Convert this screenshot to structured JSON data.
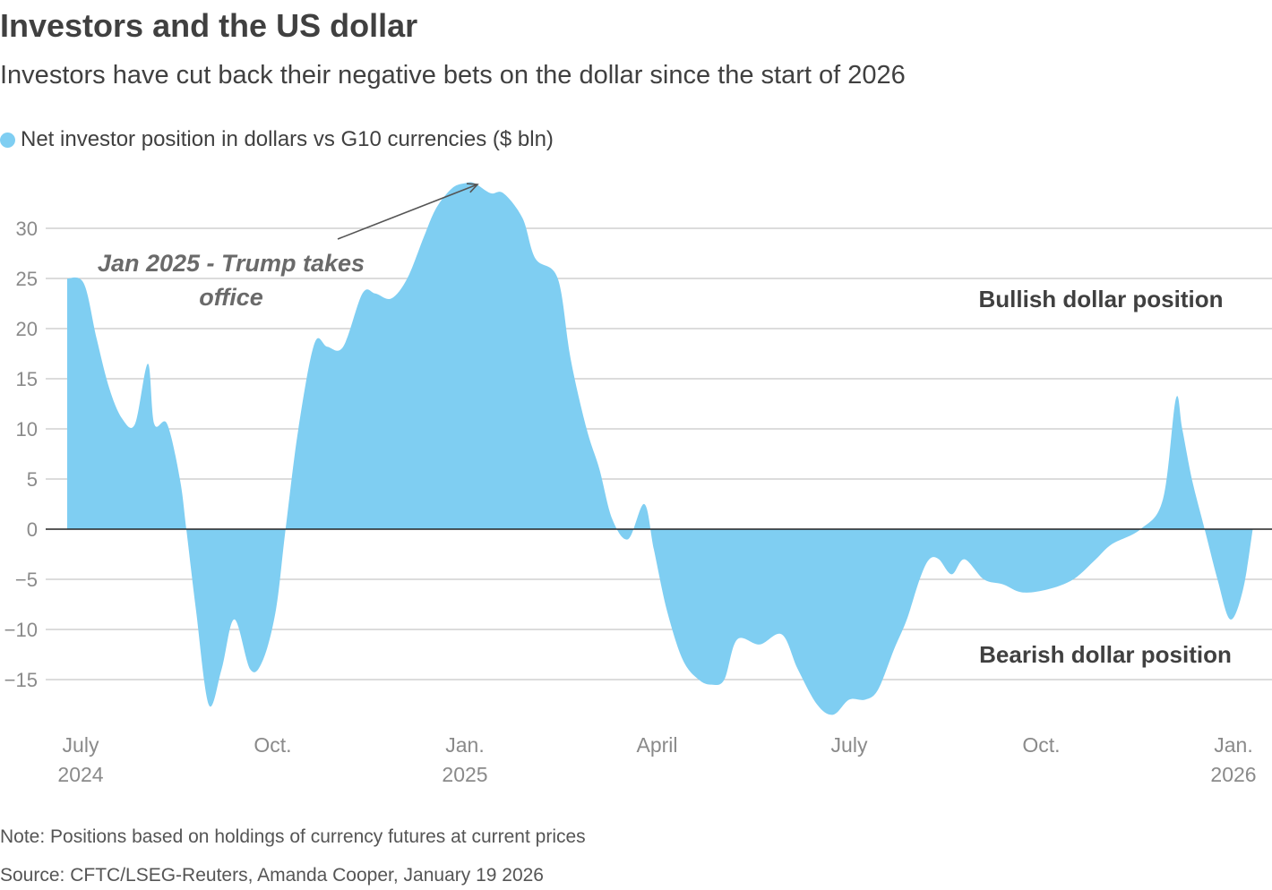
{
  "title": "Investors and the US dollar",
  "subtitle": "Investors have cut back their negative bets on the dollar since the start of 2026",
  "legend": {
    "label": "Net investor position in dollars vs G10 currencies ($ bln)",
    "color": "#7fcef2"
  },
  "note": "Note: Positions based on holdings of currency futures at current prices",
  "source": "Source: CFTC/LSEG-Reuters, Amanda Cooper, January 19 2026",
  "chart_data": {
    "type": "area",
    "title": "Investors and the US dollar",
    "ylabel": "Net investor position in dollars vs G10 currencies ($ bln)",
    "xlabel": "",
    "ylim": [
      -19,
      35
    ],
    "yticks": [
      30,
      25,
      20,
      15,
      10,
      5,
      0,
      -5,
      -10,
      -15
    ],
    "ytick_labels": [
      "30",
      "25",
      "20",
      "15",
      "10",
      "5",
      "0",
      "−5",
      "−10",
      "−15"
    ],
    "x_unit": "months since 2024-07-01",
    "xlim": [
      0,
      18.6
    ],
    "xticks": [
      {
        "x": 0,
        "line1": "July",
        "line2": "2024"
      },
      {
        "x": 3,
        "line1": "Oct.",
        "line2": ""
      },
      {
        "x": 6,
        "line1": "Jan.",
        "line2": "2025"
      },
      {
        "x": 9,
        "line1": "April",
        "line2": ""
      },
      {
        "x": 12,
        "line1": "July",
        "line2": ""
      },
      {
        "x": 15,
        "line1": "Oct.",
        "line2": ""
      },
      {
        "x": 18,
        "line1": "Jan.",
        "line2": "2026"
      }
    ],
    "series": [
      {
        "name": "Net investor position in dollars vs G10 currencies ($ bln)",
        "color": "#7fcef2",
        "x": [
          -0.2,
          0.05,
          0.25,
          0.45,
          0.65,
          0.85,
          1.05,
          1.15,
          1.35,
          1.55,
          1.65,
          1.8,
          2.0,
          2.2,
          2.4,
          2.65,
          2.85,
          3.05,
          3.2,
          3.4,
          3.65,
          3.85,
          4.1,
          4.4,
          4.6,
          4.85,
          5.1,
          5.35,
          5.55,
          5.8,
          6.0,
          6.15,
          6.4,
          6.6,
          6.9,
          7.1,
          7.45,
          7.65,
          7.9,
          8.1,
          8.3,
          8.55,
          8.8,
          8.95,
          9.15,
          9.4,
          9.65,
          9.85,
          10.05,
          10.25,
          10.6,
          10.95,
          11.2,
          11.5,
          11.75,
          12.0,
          12.25,
          12.45,
          12.7,
          12.9,
          13.1,
          13.25,
          13.4,
          13.6,
          13.8,
          14.1,
          14.4,
          14.7,
          15.1,
          15.5,
          15.85,
          16.1,
          16.55,
          16.9,
          17.1,
          17.2,
          17.35,
          17.55,
          17.75,
          17.95,
          18.15,
          18.3
        ],
        "values": [
          25,
          24.5,
          19,
          14,
          11,
          10.5,
          16.5,
          10.5,
          10.5,
          5,
          0,
          -8,
          -17.5,
          -14,
          -9,
          -14,
          -13,
          -8,
          0,
          10,
          18.5,
          18.2,
          18.2,
          23.5,
          23.5,
          23,
          25,
          29,
          32,
          34,
          34.5,
          34.5,
          33.5,
          33.5,
          31,
          27,
          25,
          17,
          10,
          6,
          1,
          -1,
          2.5,
          -2,
          -8,
          -13,
          -15,
          -15.5,
          -15,
          -11,
          -11.5,
          -10.5,
          -14,
          -17.5,
          -18.5,
          -17,
          -17,
          -16,
          -12,
          -9,
          -5,
          -3,
          -3,
          -4.5,
          -3,
          -5,
          -5.5,
          -6.3,
          -6,
          -5,
          -3,
          -1.5,
          0,
          3,
          13,
          10,
          5,
          0,
          -5,
          -9,
          -6,
          0
        ]
      }
    ],
    "annotations": [
      {
        "text": "Bullish dollar position",
        "x": 17.45,
        "y": 23
      },
      {
        "text": "Bearish dollar position",
        "x": 17.5,
        "y": -12.4
      },
      {
        "text_line1": "Jan 2025 - Trump takes",
        "text_line2": "office",
        "x": 2.6,
        "y": 25.7,
        "arrow_to_x": 6.1,
        "arrow_to_y": 34.3
      }
    ]
  }
}
